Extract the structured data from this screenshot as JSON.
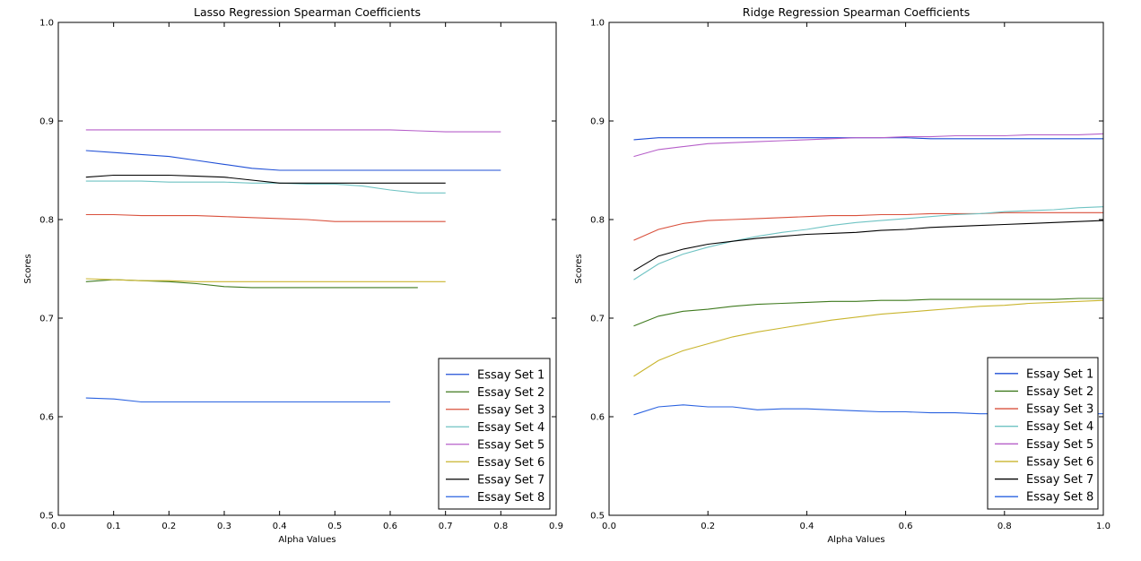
{
  "chart_data": [
    {
      "type": "line",
      "title": "Lasso Regression Spearman Coefficients",
      "xlabel": "Alpha Values",
      "ylabel": "Scores",
      "xlim": [
        0.0,
        0.9
      ],
      "ylim": [
        0.5,
        1.0
      ],
      "xticks": [
        "0.0",
        "0.1",
        "0.2",
        "0.3",
        "0.4",
        "0.5",
        "0.6",
        "0.7",
        "0.8",
        "0.9"
      ],
      "yticks": [
        "0.5",
        "0.6",
        "0.7",
        "0.8",
        "0.9",
        "1.0"
      ],
      "legend": "lower-right",
      "series": [
        {
          "name": "Essay Set 1",
          "color": "#1f4fd6",
          "x": [
            0.05,
            0.1,
            0.15,
            0.2,
            0.25,
            0.3,
            0.35,
            0.4,
            0.45,
            0.5,
            0.55,
            0.6,
            0.65,
            0.7,
            0.75,
            0.8
          ],
          "y": [
            0.87,
            0.868,
            0.866,
            0.864,
            0.86,
            0.856,
            0.852,
            0.85,
            0.85,
            0.85,
            0.85,
            0.85,
            0.85,
            0.85,
            0.85,
            0.85
          ]
        },
        {
          "name": "Essay Set 2",
          "color": "#3f7a1e",
          "x": [
            0.05,
            0.1,
            0.15,
            0.2,
            0.25,
            0.3,
            0.35,
            0.4,
            0.45,
            0.5,
            0.55,
            0.6,
            0.65
          ],
          "y": [
            0.737,
            0.739,
            0.738,
            0.737,
            0.735,
            0.732,
            0.731,
            0.731,
            0.731,
            0.731,
            0.731,
            0.731,
            0.731
          ]
        },
        {
          "name": "Essay Set 3",
          "color": "#d9503c",
          "x": [
            0.05,
            0.1,
            0.15,
            0.2,
            0.25,
            0.3,
            0.35,
            0.4,
            0.45,
            0.5,
            0.55,
            0.6,
            0.65,
            0.7
          ],
          "y": [
            0.805,
            0.805,
            0.804,
            0.804,
            0.804,
            0.803,
            0.802,
            0.801,
            0.8,
            0.798,
            0.798,
            0.798,
            0.798,
            0.798
          ]
        },
        {
          "name": "Essay Set 4",
          "color": "#6fc3c3",
          "x": [
            0.05,
            0.1,
            0.15,
            0.2,
            0.25,
            0.3,
            0.35,
            0.4,
            0.45,
            0.5,
            0.55,
            0.6,
            0.65,
            0.7
          ],
          "y": [
            0.839,
            0.839,
            0.839,
            0.838,
            0.838,
            0.838,
            0.837,
            0.837,
            0.836,
            0.836,
            0.834,
            0.83,
            0.827,
            0.827
          ]
        },
        {
          "name": "Essay Set 5",
          "color": "#b65fc9",
          "x": [
            0.05,
            0.1,
            0.15,
            0.2,
            0.25,
            0.3,
            0.35,
            0.4,
            0.45,
            0.5,
            0.55,
            0.6,
            0.65,
            0.7,
            0.75,
            0.8
          ],
          "y": [
            0.891,
            0.891,
            0.891,
            0.891,
            0.891,
            0.891,
            0.891,
            0.891,
            0.891,
            0.891,
            0.891,
            0.891,
            0.89,
            0.889,
            0.889,
            0.889
          ]
        },
        {
          "name": "Essay Set 6",
          "color": "#c9b52e",
          "x": [
            0.05,
            0.1,
            0.15,
            0.2,
            0.25,
            0.3,
            0.35,
            0.4,
            0.45,
            0.5,
            0.55,
            0.6,
            0.65,
            0.7
          ],
          "y": [
            0.74,
            0.739,
            0.738,
            0.738,
            0.737,
            0.737,
            0.737,
            0.737,
            0.737,
            0.737,
            0.737,
            0.737,
            0.737,
            0.737
          ]
        },
        {
          "name": "Essay Set 7",
          "color": "#000000",
          "x": [
            0.05,
            0.1,
            0.15,
            0.2,
            0.25,
            0.3,
            0.35,
            0.4,
            0.45,
            0.5,
            0.55,
            0.6,
            0.65,
            0.7
          ],
          "y": [
            0.843,
            0.845,
            0.845,
            0.845,
            0.844,
            0.843,
            0.84,
            0.837,
            0.837,
            0.837,
            0.837,
            0.837,
            0.837,
            0.837
          ]
        },
        {
          "name": "Essay Set 8",
          "color": "#2a62e0",
          "x": [
            0.05,
            0.1,
            0.15,
            0.2,
            0.25,
            0.3,
            0.35,
            0.4,
            0.45,
            0.5,
            0.55,
            0.6
          ],
          "y": [
            0.619,
            0.618,
            0.615,
            0.615,
            0.615,
            0.615,
            0.615,
            0.615,
            0.615,
            0.615,
            0.615,
            0.615
          ]
        }
      ]
    },
    {
      "type": "line",
      "title": "Ridge Regression Spearman Coefficients",
      "xlabel": "Alpha Values",
      "ylabel": "Scores",
      "xlim": [
        0.0,
        1.0
      ],
      "ylim": [
        0.5,
        1.0
      ],
      "xticks": [
        "0.0",
        "0.2",
        "0.4",
        "0.6",
        "0.8",
        "1.0"
      ],
      "yticks": [
        "0.5",
        "0.6",
        "0.7",
        "0.8",
        "0.9",
        "1.0"
      ],
      "legend": "lower-right",
      "series": [
        {
          "name": "Essay Set 1",
          "color": "#1f4fd6",
          "x": [
            0.05,
            0.1,
            0.15,
            0.2,
            0.25,
            0.3,
            0.35,
            0.4,
            0.45,
            0.5,
            0.55,
            0.6,
            0.65,
            0.7,
            0.75,
            0.8,
            0.85,
            0.9,
            0.95,
            1.0
          ],
          "y": [
            0.881,
            0.883,
            0.883,
            0.883,
            0.883,
            0.883,
            0.883,
            0.883,
            0.883,
            0.883,
            0.883,
            0.883,
            0.882,
            0.882,
            0.882,
            0.882,
            0.882,
            0.882,
            0.882,
            0.882
          ]
        },
        {
          "name": "Essay Set 2",
          "color": "#3f7a1e",
          "x": [
            0.05,
            0.1,
            0.15,
            0.2,
            0.25,
            0.3,
            0.35,
            0.4,
            0.45,
            0.5,
            0.55,
            0.6,
            0.65,
            0.7,
            0.75,
            0.8,
            0.85,
            0.9,
            0.95,
            1.0
          ],
          "y": [
            0.692,
            0.702,
            0.707,
            0.709,
            0.712,
            0.714,
            0.715,
            0.716,
            0.717,
            0.717,
            0.718,
            0.718,
            0.719,
            0.719,
            0.719,
            0.719,
            0.719,
            0.719,
            0.72,
            0.72
          ]
        },
        {
          "name": "Essay Set 3",
          "color": "#d9503c",
          "x": [
            0.05,
            0.1,
            0.15,
            0.2,
            0.25,
            0.3,
            0.35,
            0.4,
            0.45,
            0.5,
            0.55,
            0.6,
            0.65,
            0.7,
            0.75,
            0.8,
            0.85,
            0.9,
            0.95,
            1.0
          ],
          "y": [
            0.779,
            0.79,
            0.796,
            0.799,
            0.8,
            0.801,
            0.802,
            0.803,
            0.804,
            0.804,
            0.805,
            0.805,
            0.806,
            0.806,
            0.806,
            0.807,
            0.807,
            0.807,
            0.807,
            0.807
          ]
        },
        {
          "name": "Essay Set 4",
          "color": "#6fc3c3",
          "x": [
            0.05,
            0.1,
            0.15,
            0.2,
            0.25,
            0.3,
            0.35,
            0.4,
            0.45,
            0.5,
            0.55,
            0.6,
            0.65,
            0.7,
            0.75,
            0.8,
            0.85,
            0.9,
            0.95,
            1.0
          ],
          "y": [
            0.739,
            0.755,
            0.765,
            0.772,
            0.778,
            0.783,
            0.787,
            0.79,
            0.794,
            0.797,
            0.799,
            0.801,
            0.803,
            0.805,
            0.806,
            0.808,
            0.809,
            0.81,
            0.812,
            0.813
          ]
        },
        {
          "name": "Essay Set 5",
          "color": "#b65fc9",
          "x": [
            0.05,
            0.1,
            0.15,
            0.2,
            0.25,
            0.3,
            0.35,
            0.4,
            0.45,
            0.5,
            0.55,
            0.6,
            0.65,
            0.7,
            0.75,
            0.8,
            0.85,
            0.9,
            0.95,
            1.0
          ],
          "y": [
            0.864,
            0.871,
            0.874,
            0.877,
            0.878,
            0.879,
            0.88,
            0.881,
            0.882,
            0.883,
            0.883,
            0.884,
            0.884,
            0.885,
            0.885,
            0.885,
            0.886,
            0.886,
            0.886,
            0.887
          ]
        },
        {
          "name": "Essay Set 6",
          "color": "#c9b52e",
          "x": [
            0.05,
            0.1,
            0.15,
            0.2,
            0.25,
            0.3,
            0.35,
            0.4,
            0.45,
            0.5,
            0.55,
            0.6,
            0.65,
            0.7,
            0.75,
            0.8,
            0.85,
            0.9,
            0.95,
            1.0
          ],
          "y": [
            0.641,
            0.657,
            0.667,
            0.674,
            0.681,
            0.686,
            0.69,
            0.694,
            0.698,
            0.701,
            0.704,
            0.706,
            0.708,
            0.71,
            0.712,
            0.713,
            0.715,
            0.716,
            0.717,
            0.718
          ]
        },
        {
          "name": "Essay Set 7",
          "color": "#000000",
          "x": [
            0.05,
            0.1,
            0.15,
            0.2,
            0.25,
            0.3,
            0.35,
            0.4,
            0.45,
            0.5,
            0.55,
            0.6,
            0.65,
            0.7,
            0.75,
            0.8,
            0.85,
            0.9,
            0.95,
            1.0
          ],
          "y": [
            0.748,
            0.763,
            0.77,
            0.775,
            0.778,
            0.781,
            0.783,
            0.785,
            0.786,
            0.787,
            0.789,
            0.79,
            0.792,
            0.793,
            0.794,
            0.795,
            0.796,
            0.797,
            0.798,
            0.799
          ]
        },
        {
          "name": "Essay Set 8",
          "color": "#2a62e0",
          "x": [
            0.05,
            0.1,
            0.15,
            0.2,
            0.25,
            0.3,
            0.35,
            0.4,
            0.45,
            0.5,
            0.55,
            0.6,
            0.65,
            0.7,
            0.75,
            0.8,
            0.85,
            0.9,
            0.95,
            1.0
          ],
          "y": [
            0.602,
            0.61,
            0.612,
            0.61,
            0.61,
            0.607,
            0.608,
            0.608,
            0.607,
            0.606,
            0.605,
            0.605,
            0.604,
            0.604,
            0.603,
            0.603,
            0.603,
            0.603,
            0.603,
            0.603
          ]
        }
      ]
    }
  ]
}
